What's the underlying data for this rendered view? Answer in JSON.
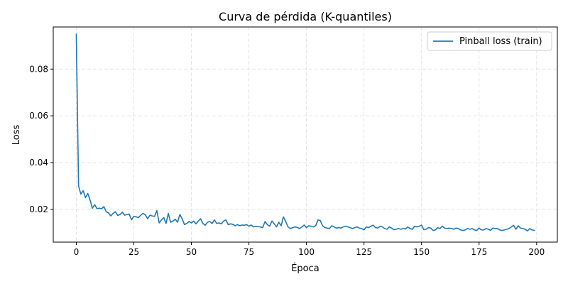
{
  "chart_data": {
    "type": "line",
    "title": "Curva de pérdida (K-quantiles)",
    "xlabel": "Época",
    "ylabel": "Loss",
    "xlim": [
      -10,
      209
    ],
    "ylim": [
      0.006,
      0.098
    ],
    "xticks": [
      0,
      25,
      50,
      75,
      100,
      125,
      150,
      175,
      200
    ],
    "yticks": [
      0.02,
      0.04,
      0.06,
      0.08
    ],
    "xtick_labels": [
      "0",
      "25",
      "50",
      "75",
      "100",
      "125",
      "150",
      "175",
      "200"
    ],
    "ytick_labels": [
      "0.02",
      "0.04",
      "0.06",
      "0.08"
    ],
    "grid": true,
    "legend_position": "top-right",
    "colors": {
      "series": "#1f77b4",
      "grid": "#dddddd",
      "axes": "#000000",
      "legend_border": "#cccccc"
    },
    "series": [
      {
        "name": "Pinball loss (train)",
        "x_start": 0,
        "x_step": 1,
        "values": [
          0.095,
          0.03,
          0.0265,
          0.028,
          0.025,
          0.0268,
          0.024,
          0.0205,
          0.022,
          0.0203,
          0.0205,
          0.0203,
          0.0212,
          0.019,
          0.0185,
          0.0172,
          0.0183,
          0.019,
          0.0174,
          0.0178,
          0.0188,
          0.0175,
          0.0178,
          0.018,
          0.0155,
          0.017,
          0.0168,
          0.0165,
          0.0175,
          0.0183,
          0.0177,
          0.016,
          0.0175,
          0.0172,
          0.017,
          0.0195,
          0.0142,
          0.0155,
          0.0165,
          0.014,
          0.0182,
          0.0145,
          0.015,
          0.0158,
          0.0145,
          0.0178,
          0.016,
          0.0135,
          0.014,
          0.0148,
          0.0142,
          0.015,
          0.0138,
          0.015,
          0.016,
          0.014,
          0.0132,
          0.0145,
          0.0148,
          0.014,
          0.0155,
          0.014,
          0.0142,
          0.0138,
          0.015,
          0.0155,
          0.0135,
          0.0138,
          0.0136,
          0.013,
          0.0135,
          0.013,
          0.0133,
          0.0132,
          0.0135,
          0.0128,
          0.0133,
          0.0125,
          0.0128,
          0.0126,
          0.0125,
          0.0122,
          0.0148,
          0.0135,
          0.0128,
          0.015,
          0.0138,
          0.0125,
          0.0145,
          0.013,
          0.0168,
          0.0148,
          0.0125,
          0.0118,
          0.0122,
          0.0125,
          0.0123,
          0.0118,
          0.0125,
          0.0133,
          0.0122,
          0.013,
          0.0128,
          0.0125,
          0.013,
          0.0155,
          0.0152,
          0.013,
          0.0122,
          0.012,
          0.0118,
          0.013,
          0.0125,
          0.012,
          0.0122,
          0.012,
          0.0125,
          0.0128,
          0.0125,
          0.0122,
          0.0118,
          0.0122,
          0.0125,
          0.012,
          0.0118,
          0.0112,
          0.0125,
          0.0122,
          0.0128,
          0.0132,
          0.0122,
          0.012,
          0.0128,
          0.0125,
          0.0118,
          0.0115,
          0.0125,
          0.012,
          0.0113,
          0.0115,
          0.0118,
          0.0115,
          0.0118,
          0.0116,
          0.0125,
          0.0118,
          0.0115,
          0.0128,
          0.0125,
          0.0128,
          0.0133,
          0.0113,
          0.0115,
          0.0122,
          0.012,
          0.011,
          0.0112,
          0.0122,
          0.0118,
          0.0128,
          0.012,
          0.0118,
          0.012,
          0.0118,
          0.0115,
          0.012,
          0.0118,
          0.0112,
          0.011,
          0.0112,
          0.0118,
          0.0115,
          0.0118,
          0.0112,
          0.011,
          0.012,
          0.0112,
          0.0112,
          0.0118,
          0.0115,
          0.011,
          0.012,
          0.0118,
          0.0118,
          0.0112,
          0.011,
          0.0112,
          0.0115,
          0.0118,
          0.0125,
          0.0132,
          0.0115,
          0.013,
          0.012,
          0.0118,
          0.0115,
          0.0108,
          0.0118,
          0.0112,
          0.011
        ]
      }
    ]
  }
}
